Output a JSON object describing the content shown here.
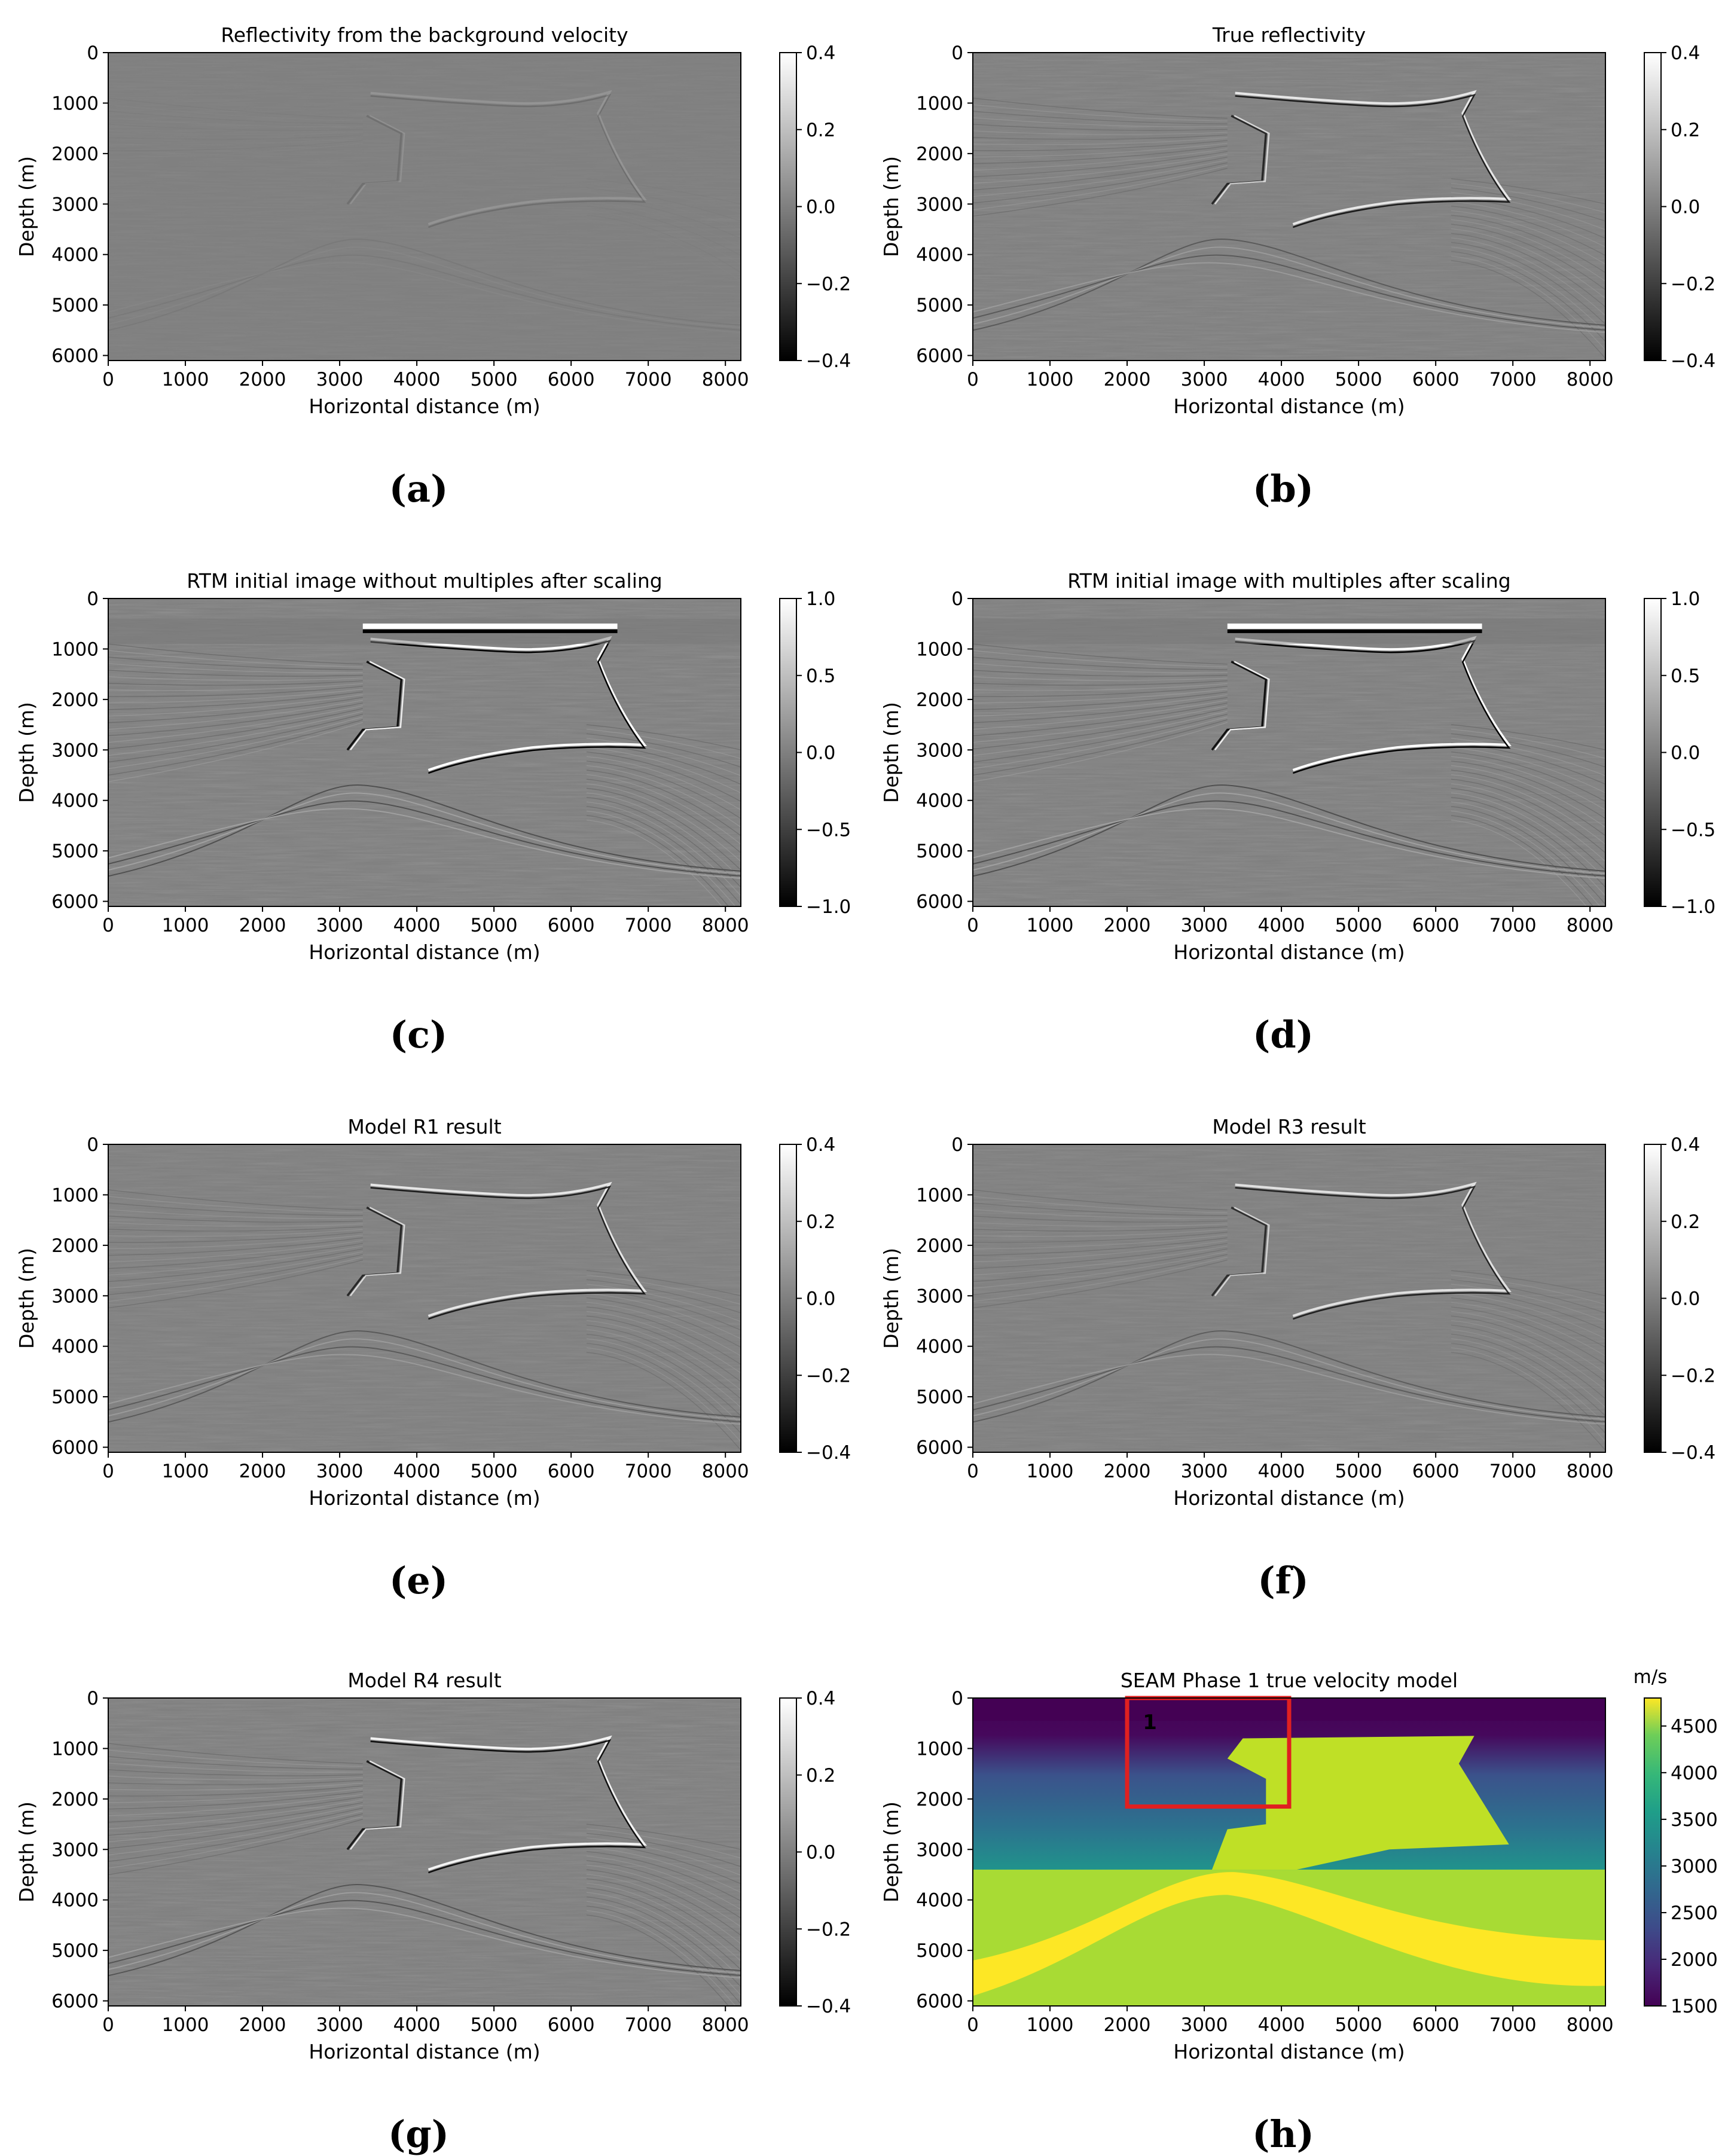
{
  "figure": {
    "common": {
      "xlabel": "Horizontal distance (m)",
      "ylabel": "Depth (m)",
      "xlim": [
        0,
        8200
      ],
      "ylim": [
        6100,
        0
      ],
      "xticks": [
        0,
        1000,
        2000,
        3000,
        4000,
        5000,
        6000,
        7000,
        8000
      ],
      "yticks": [
        0,
        1000,
        2000,
        3000,
        4000,
        5000,
        6000
      ]
    }
  },
  "chart_data": [
    {
      "id": "a",
      "type": "heatmap",
      "title": "Reflectivity from the background velocity",
      "subfig_label": "(a)",
      "colormap": "gray",
      "colorbar": {
        "ticks": [
          "0.4",
          "0.2",
          "0.0",
          "−0.2",
          "−0.4"
        ],
        "values": [
          0.4,
          0.2,
          0.0,
          -0.2,
          -0.4
        ],
        "range": [
          -0.4,
          0.4
        ],
        "unit": ""
      },
      "intensity": 0.15,
      "seed": 3
    },
    {
      "id": "b",
      "type": "heatmap",
      "title": "True reflectivity",
      "subfig_label": "(b)",
      "colormap": "gray",
      "colorbar": {
        "ticks": [
          "0.4",
          "0.2",
          "0.0",
          "−0.2",
          "−0.4"
        ],
        "values": [
          0.4,
          0.2,
          0.0,
          -0.2,
          -0.4
        ],
        "range": [
          -0.4,
          0.4
        ],
        "unit": ""
      },
      "intensity": 0.8,
      "seed": 5
    },
    {
      "id": "c",
      "type": "heatmap",
      "title": "RTM initial image without multiples after scaling",
      "subfig_label": "(c)",
      "colormap": "gray",
      "colorbar": {
        "ticks": [
          "1.0",
          "0.5",
          "0.0",
          "−0.5",
          "−1.0"
        ],
        "values": [
          1.0,
          0.5,
          0.0,
          -0.5,
          -1.0
        ],
        "range": [
          -1.0,
          1.0
        ],
        "unit": ""
      },
      "intensity": 1.0,
      "seed": 7
    },
    {
      "id": "d",
      "type": "heatmap",
      "title": "RTM initial image with multiples after scaling",
      "subfig_label": "(d)",
      "colormap": "gray",
      "colorbar": {
        "ticks": [
          "1.0",
          "0.5",
          "0.0",
          "−0.5",
          "−1.0"
        ],
        "values": [
          1.0,
          0.5,
          0.0,
          -0.5,
          -1.0
        ],
        "range": [
          -1.0,
          1.0
        ],
        "unit": ""
      },
      "intensity": 1.0,
      "seed": 9
    },
    {
      "id": "e",
      "type": "heatmap",
      "title": "Model R1 result",
      "subfig_label": "(e)",
      "colormap": "gray",
      "colorbar": {
        "ticks": [
          "0.4",
          "0.2",
          "0.0",
          "−0.2",
          "−0.4"
        ],
        "values": [
          0.4,
          0.2,
          0.0,
          -0.2,
          -0.4
        ],
        "range": [
          -0.4,
          0.4
        ],
        "unit": ""
      },
      "intensity": 0.8,
      "seed": 11
    },
    {
      "id": "f",
      "type": "heatmap",
      "title": "Model R3 result",
      "subfig_label": "(f)",
      "colormap": "gray",
      "colorbar": {
        "ticks": [
          "0.4",
          "0.2",
          "0.0",
          "−0.2",
          "−0.4"
        ],
        "values": [
          0.4,
          0.2,
          0.0,
          -0.2,
          -0.4
        ],
        "range": [
          -0.4,
          0.4
        ],
        "unit": ""
      },
      "intensity": 0.75,
      "seed": 13
    },
    {
      "id": "g",
      "type": "heatmap",
      "title": "Model R4 result",
      "subfig_label": "(g)",
      "colormap": "gray",
      "colorbar": {
        "ticks": [
          "0.4",
          "0.2",
          "0.0",
          "−0.2",
          "−0.4"
        ],
        "values": [
          0.4,
          0.2,
          0.0,
          -0.2,
          -0.4
        ],
        "range": [
          -0.4,
          0.4
        ],
        "unit": ""
      },
      "intensity": 0.9,
      "seed": 17
    },
    {
      "id": "h",
      "type": "heatmap",
      "title": "SEAM Phase 1 true velocity model",
      "subfig_label": "(h)",
      "colormap": "viridis",
      "colorbar": {
        "ticks": [
          "4500",
          "4000",
          "3500",
          "3000",
          "2500",
          "2000",
          "1500"
        ],
        "values": [
          4500,
          4000,
          3500,
          3000,
          2500,
          2000,
          1500
        ],
        "range": [
          1500,
          4800
        ],
        "unit": "m/s"
      },
      "annotation": {
        "label": "1",
        "box": {
          "x0": 2000,
          "x1": 4100,
          "y0": 0,
          "y1": 2150
        },
        "color": "#e02020"
      }
    }
  ]
}
